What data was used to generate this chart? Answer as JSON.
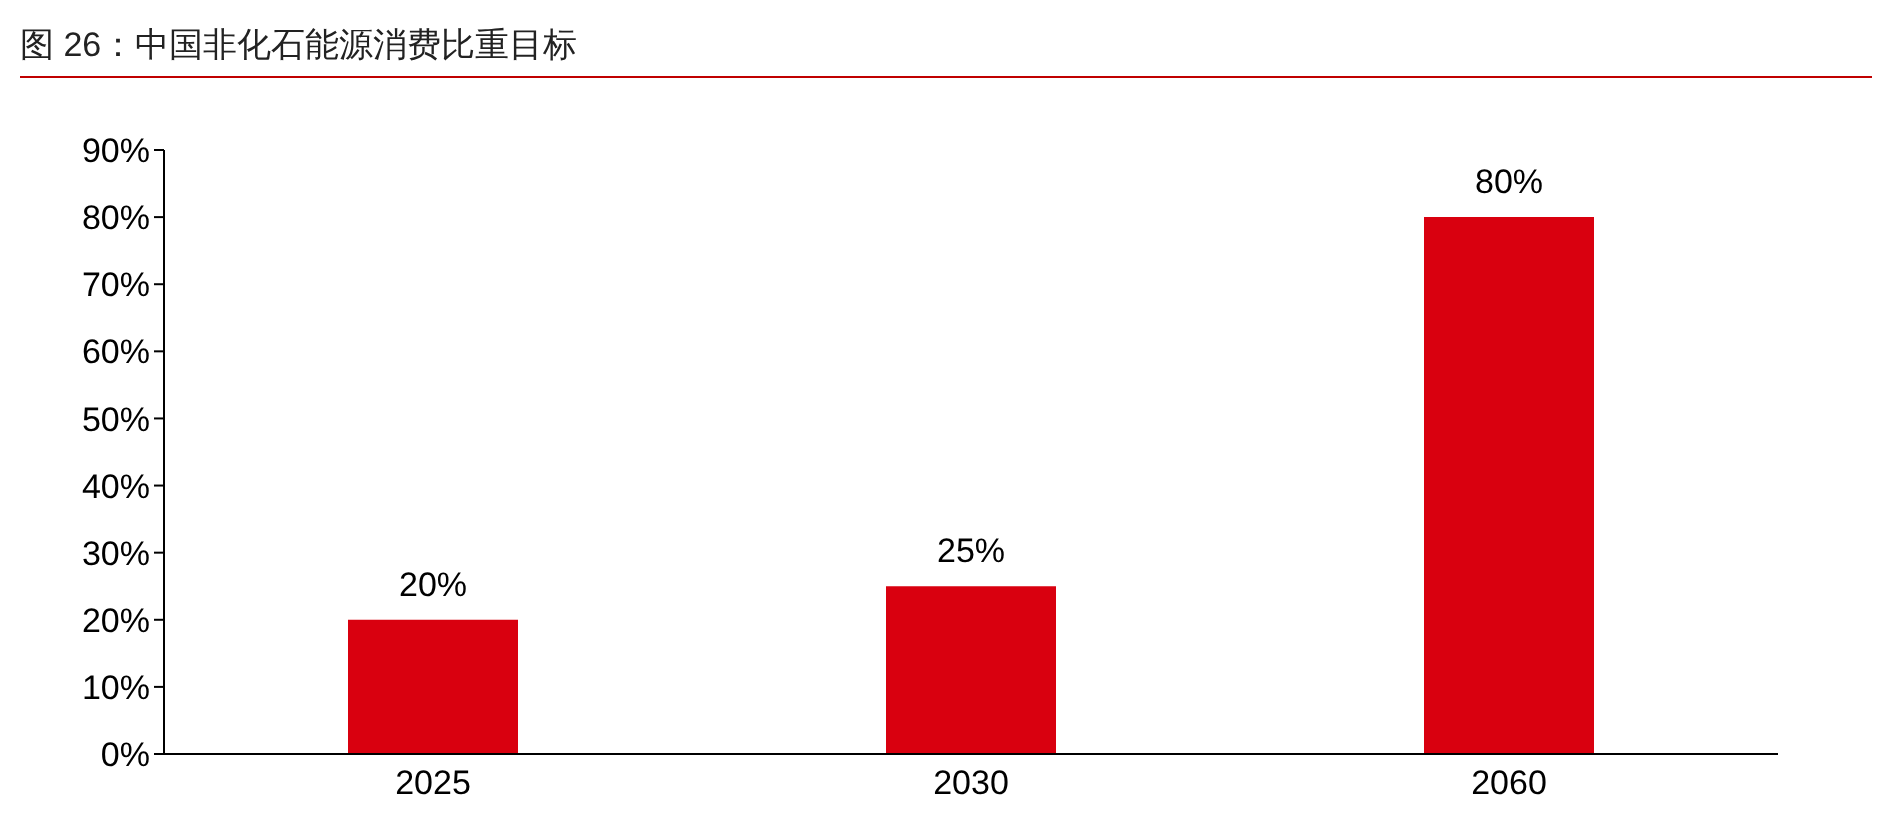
{
  "chart_data": {
    "type": "bar",
    "title": "图 26：中国非化石能源消费比重目标",
    "categories": [
      "2025",
      "2030",
      "2060"
    ],
    "values": [
      20,
      25,
      80
    ],
    "value_labels": [
      "20%",
      "25%",
      "80%"
    ],
    "color": "#d9000f",
    "ylim": [
      0,
      90
    ],
    "yticks": [
      {
        "value": 0,
        "label": "0%"
      },
      {
        "value": 10,
        "label": "10%"
      },
      {
        "value": 20,
        "label": "20%"
      },
      {
        "value": 30,
        "label": "30%"
      },
      {
        "value": 40,
        "label": "40%"
      },
      {
        "value": 50,
        "label": "50%"
      },
      {
        "value": 60,
        "label": "60%"
      },
      {
        "value": 70,
        "label": "70%"
      },
      {
        "value": 80,
        "label": "80%"
      },
      {
        "value": 90,
        "label": "90%"
      }
    ],
    "grid": false,
    "legend": false
  }
}
